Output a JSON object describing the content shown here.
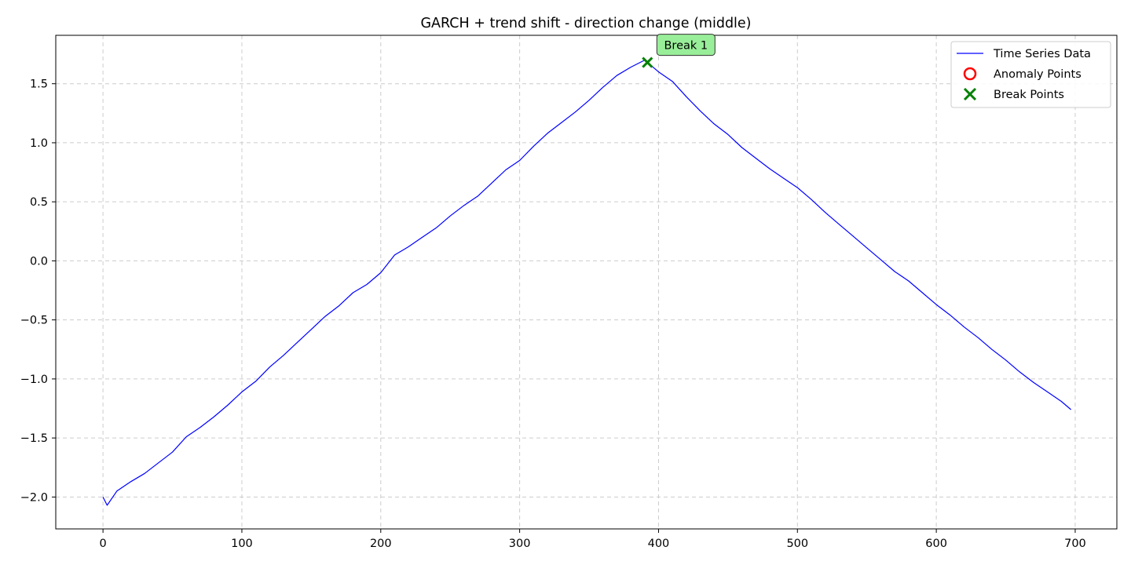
{
  "chart_data": {
    "type": "line",
    "title": "GARCH + trend shift - direction change (middle)",
    "xlabel": "",
    "ylabel": "",
    "xlim": [
      -34,
      730
    ],
    "ylim": [
      -2.27,
      1.91
    ],
    "x_ticks": [
      0,
      100,
      200,
      300,
      400,
      500,
      600,
      700
    ],
    "x_tick_labels": [
      "0",
      "100",
      "200",
      "300",
      "400",
      "500",
      "600",
      "700"
    ],
    "y_ticks": [
      -2.0,
      -1.5,
      -1.0,
      -0.5,
      0.0,
      0.5,
      1.0,
      1.5
    ],
    "y_tick_labels": [
      "−2.0",
      "−1.5",
      "−1.0",
      "−0.5",
      "0.0",
      "0.5",
      "1.0",
      "1.5"
    ],
    "grid": true,
    "legend_position": "top-right",
    "series": [
      {
        "name": "Time Series Data",
        "kind": "line",
        "color": "#0000ff",
        "x": [
          0,
          3,
          10,
          20,
          30,
          40,
          50,
          60,
          70,
          80,
          90,
          100,
          110,
          120,
          130,
          140,
          150,
          160,
          170,
          180,
          190,
          200,
          210,
          220,
          230,
          240,
          250,
          260,
          270,
          280,
          290,
          300,
          310,
          320,
          330,
          340,
          350,
          360,
          370,
          380,
          390,
          392,
          400,
          410,
          420,
          430,
          440,
          450,
          460,
          470,
          480,
          490,
          500,
          510,
          520,
          530,
          540,
          550,
          560,
          570,
          580,
          590,
          600,
          610,
          620,
          630,
          640,
          650,
          660,
          670,
          680,
          690,
          697
        ],
        "y": [
          -2.0,
          -2.07,
          -1.95,
          -1.87,
          -1.8,
          -1.71,
          -1.62,
          -1.49,
          -1.41,
          -1.32,
          -1.22,
          -1.11,
          -1.02,
          -0.9,
          -0.8,
          -0.69,
          -0.58,
          -0.47,
          -0.38,
          -0.27,
          -0.2,
          -0.1,
          0.05,
          0.12,
          0.2,
          0.28,
          0.38,
          0.47,
          0.55,
          0.66,
          0.77,
          0.85,
          0.97,
          1.08,
          1.17,
          1.26,
          1.36,
          1.47,
          1.57,
          1.64,
          1.7,
          1.68,
          1.6,
          1.52,
          1.39,
          1.27,
          1.16,
          1.07,
          0.96,
          0.87,
          0.78,
          0.7,
          0.62,
          0.52,
          0.41,
          0.31,
          0.21,
          0.11,
          0.01,
          -0.09,
          -0.17,
          -0.27,
          -0.37,
          -0.46,
          -0.56,
          -0.65,
          -0.75,
          -0.84,
          -0.94,
          -1.03,
          -1.11,
          -1.19,
          -1.26
        ]
      },
      {
        "name": "Anomaly Points",
        "kind": "marker",
        "marker": "circle",
        "color": "#ff0000",
        "x": [],
        "y": []
      },
      {
        "name": "Break Points",
        "kind": "marker",
        "marker": "x",
        "color": "#008000",
        "x": [
          392
        ],
        "y": [
          1.68
        ]
      }
    ],
    "annotations": [
      {
        "text": "Break 1",
        "x": 392,
        "y": 1.68
      }
    ],
    "colors": {
      "annotation_box": "#99ee99",
      "grid": "#cccccc"
    }
  }
}
